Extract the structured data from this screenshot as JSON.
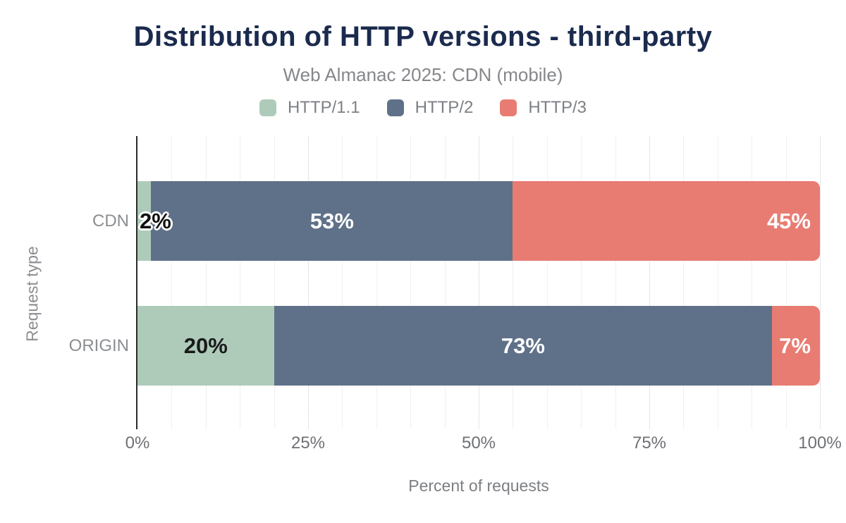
{
  "header": {
    "title": "Distribution of HTTP versions - third-party",
    "subtitle": "Web Almanac 2025: CDN (mobile)"
  },
  "chart_data": {
    "type": "bar",
    "orientation": "horizontal",
    "stacked": true,
    "title": "Distribution of HTTP versions - third-party",
    "subtitle": "Web Almanac 2025: CDN (mobile)",
    "xlabel": "Percent of requests",
    "ylabel": "Request type",
    "xlim": [
      0,
      100
    ],
    "x_ticks": [
      {
        "value": 0,
        "label": "0%"
      },
      {
        "value": 25,
        "label": "25%"
      },
      {
        "value": 50,
        "label": "50%"
      },
      {
        "value": 75,
        "label": "75%"
      },
      {
        "value": 100,
        "label": "100%"
      }
    ],
    "grid": {
      "minor_step": 5,
      "major_step": 25,
      "minor_color": "#f0f0f0",
      "major_color": "#c9cdd2"
    },
    "legend_position": "top",
    "categories": [
      "CDN",
      "ORIGIN"
    ],
    "series": [
      {
        "name": "HTTP/1.1",
        "color": "#aecbba",
        "values": [
          2,
          20
        ]
      },
      {
        "name": "HTTP/2",
        "color": "#5f7189",
        "values": [
          53,
          73
        ]
      },
      {
        "name": "HTTP/3",
        "color": "#e87c72",
        "values": [
          45,
          7
        ]
      }
    ],
    "rows": [
      {
        "category": "CDN",
        "segments": [
          {
            "series": "HTTP/1.1",
            "value": 2,
            "label": "2%",
            "label_style": "dark-outlined",
            "align": "start-overflow"
          },
          {
            "series": "HTTP/2",
            "value": 53,
            "label": "53%",
            "label_style": "light",
            "align": "center"
          },
          {
            "series": "HTTP/3",
            "value": 45,
            "label": "45%",
            "label_style": "light",
            "align": "end"
          }
        ]
      },
      {
        "category": "ORIGIN",
        "segments": [
          {
            "series": "HTTP/1.1",
            "value": 20,
            "label": "20%",
            "label_style": "dark",
            "align": "center"
          },
          {
            "series": "HTTP/2",
            "value": 73,
            "label": "73%",
            "label_style": "light",
            "align": "center"
          },
          {
            "series": "HTTP/3",
            "value": 7,
            "label": "7%",
            "label_style": "light",
            "align": "end"
          }
        ]
      }
    ]
  },
  "colors": {
    "title_text": "#1b2b4e",
    "subtitle_text": "#85878a",
    "axis_line": "#2b2b2b",
    "background": "#ffffff"
  }
}
